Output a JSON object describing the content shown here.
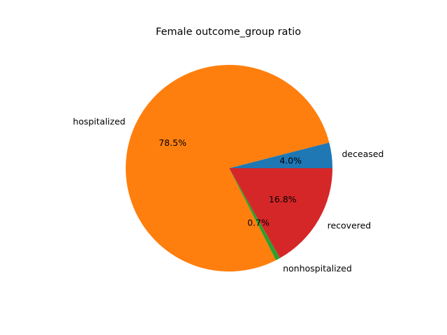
{
  "chart_data": {
    "type": "pie",
    "title": "Female outcome_group ratio",
    "slices": [
      {
        "label": "deceased",
        "value": 4.0,
        "pct_label": "4.0%",
        "color": "#1f77b4"
      },
      {
        "label": "hospitalized",
        "value": 78.5,
        "pct_label": "78.5%",
        "color": "#ff7f0e"
      },
      {
        "label": "nonhospitalized",
        "value": 0.7,
        "pct_label": "0.7%",
        "color": "#2ca02c"
      },
      {
        "label": "recovered",
        "value": 16.8,
        "pct_label": "16.8%",
        "color": "#d62728"
      }
    ],
    "start_angle_deg": 0,
    "direction": "counterclockwise",
    "legend": "none"
  }
}
